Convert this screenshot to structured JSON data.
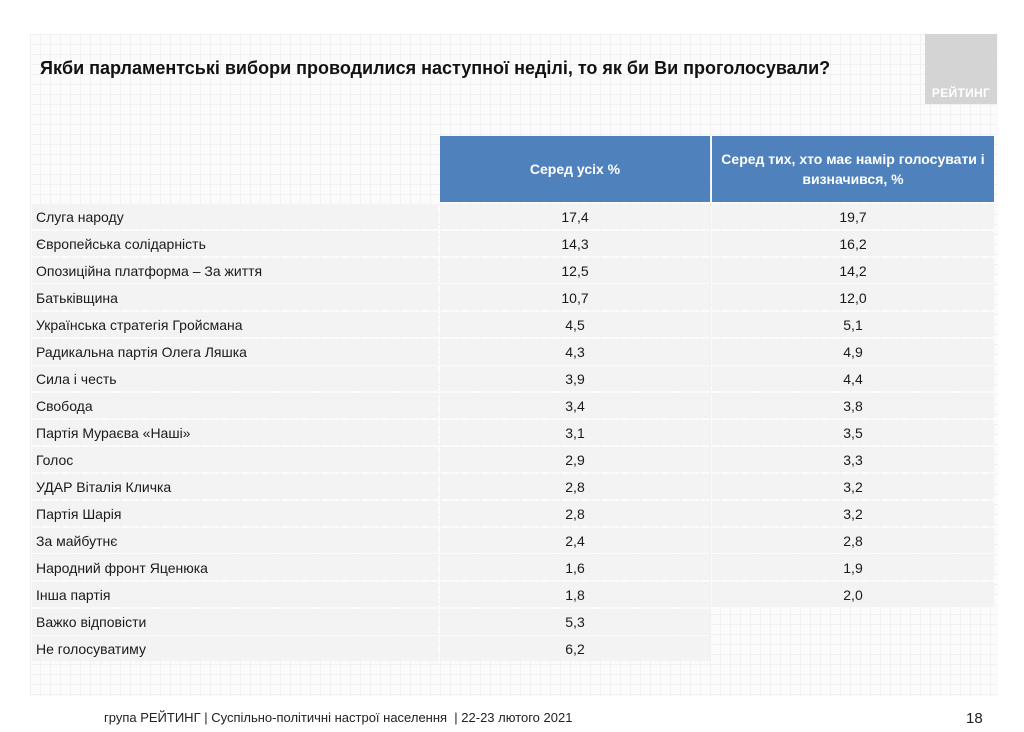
{
  "title": "Якби парламентські вибори проводилися наступної неділі, то як би Ви проголосували?",
  "logo_text": "РЕЙТИНГ",
  "columns": {
    "party": "",
    "all": "Серед усіх %",
    "decided": "Серед тих, хто має намір голосувати і визначився, %"
  },
  "rows": [
    {
      "party": "Слуга народу",
      "all": "17,4",
      "decided": "19,7"
    },
    {
      "party": "Європейська солідарність",
      "all": "14,3",
      "decided": "16,2"
    },
    {
      "party": "Опозиційна платформа – За життя",
      "all": "12,5",
      "decided": "14,2"
    },
    {
      "party": "Батьківщина",
      "all": "10,7",
      "decided": "12,0"
    },
    {
      "party": "Українська стратегія Гройсмана",
      "all": "4,5",
      "decided": "5,1"
    },
    {
      "party": "Радикальна партія Олега Ляшка",
      "all": "4,3",
      "decided": "4,9"
    },
    {
      "party": "Сила і честь",
      "all": "3,9",
      "decided": "4,4"
    },
    {
      "party": "Свобода",
      "all": "3,4",
      "decided": "3,8"
    },
    {
      "party": "Партія Мураєва «Наші»",
      "all": "3,1",
      "decided": "3,5"
    },
    {
      "party": "Голос",
      "all": "2,9",
      "decided": "3,3"
    },
    {
      "party": "УДАР Віталія Кличка",
      "all": "2,8",
      "decided": "3,2"
    },
    {
      "party": "Партія Шарія",
      "all": "2,8",
      "decided": "3,2"
    },
    {
      "party": "За майбутнє",
      "all": "2,4",
      "decided": "2,8"
    },
    {
      "party": "Народний фронт Яценюка",
      "all": "1,6",
      "decided": "1,9"
    },
    {
      "party": "Інша партія",
      "all": "1,8",
      "decided": "2,0"
    },
    {
      "party": "Важко відповісти",
      "all": "5,3",
      "decided": ""
    },
    {
      "party": "Не голосуватиму",
      "all": "6,2",
      "decided": ""
    }
  ],
  "footer": "група РЕЙТИНГ | Суспільно-політичні настрої населення  | 22-23 лютого 2021",
  "page_number": "18",
  "colors": {
    "header_bg": "#4f81bd",
    "header_text": "#ffffff",
    "row_bg": "#f3f3f3"
  }
}
